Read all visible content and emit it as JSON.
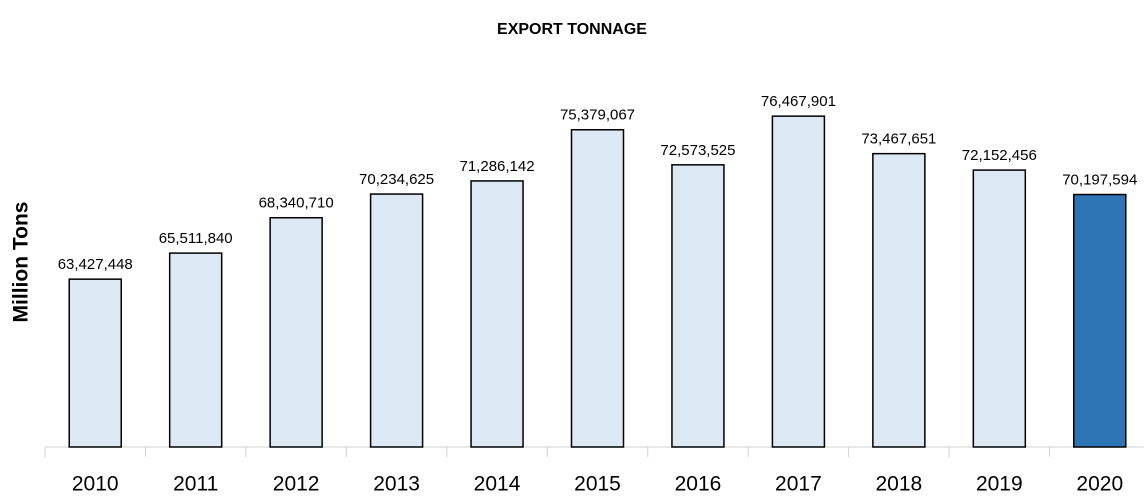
{
  "chart_data": {
    "type": "bar",
    "title": "EXPORT TONNAGE",
    "y_label": "Million Tons",
    "categories": [
      "2010",
      "2011",
      "2012",
      "2013",
      "2014",
      "2015",
      "2016",
      "2017",
      "2018",
      "2019",
      "2020"
    ],
    "values": [
      63427448,
      65511840,
      68340710,
      70234625,
      71286142,
      75379067,
      72573525,
      76467901,
      73467651,
      72152456,
      70197594
    ],
    "value_labels": [
      "63,427,448",
      "65,511,840",
      "68,340,710",
      "70,234,625",
      "71,286,142",
      "75,379,067",
      "72,573,525",
      "76,467,901",
      "73,467,651",
      "72,152,456",
      "70,197,594"
    ],
    "colors": [
      "#dde8f5",
      "#dde8f5",
      "#dde8f5",
      "#dde8f5",
      "#dde8f5",
      "#dde8f5",
      "#dde8f5",
      "#dde8f5",
      "#dde8f5",
      "#dde8f5",
      "#2e75b6"
    ],
    "ylim": [
      50000000,
      80000000
    ],
    "grid": false
  }
}
